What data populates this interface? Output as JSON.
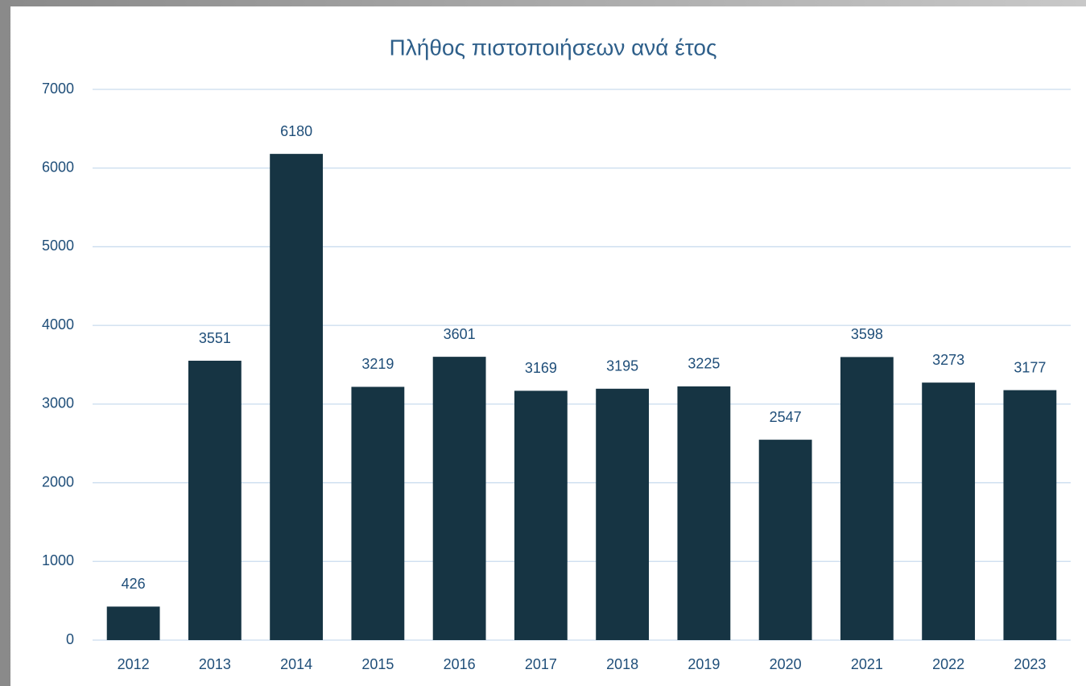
{
  "chart_data": {
    "type": "bar",
    "title": "Πλήθος πιστοποιήσεων ανά έτος",
    "categories": [
      "2012",
      "2013",
      "2014",
      "2015",
      "2016",
      "2017",
      "2018",
      "2019",
      "2020",
      "2021",
      "2022",
      "2023"
    ],
    "values": [
      426,
      3551,
      6180,
      3219,
      3601,
      3169,
      3195,
      3225,
      2547,
      3598,
      3273,
      3177
    ],
    "color": "#163443",
    "ylim": [
      0,
      7000
    ],
    "yticks": [
      0,
      1000,
      2000,
      3000,
      4000,
      5000,
      6000,
      7000
    ],
    "grid": true,
    "data_labels": true
  }
}
